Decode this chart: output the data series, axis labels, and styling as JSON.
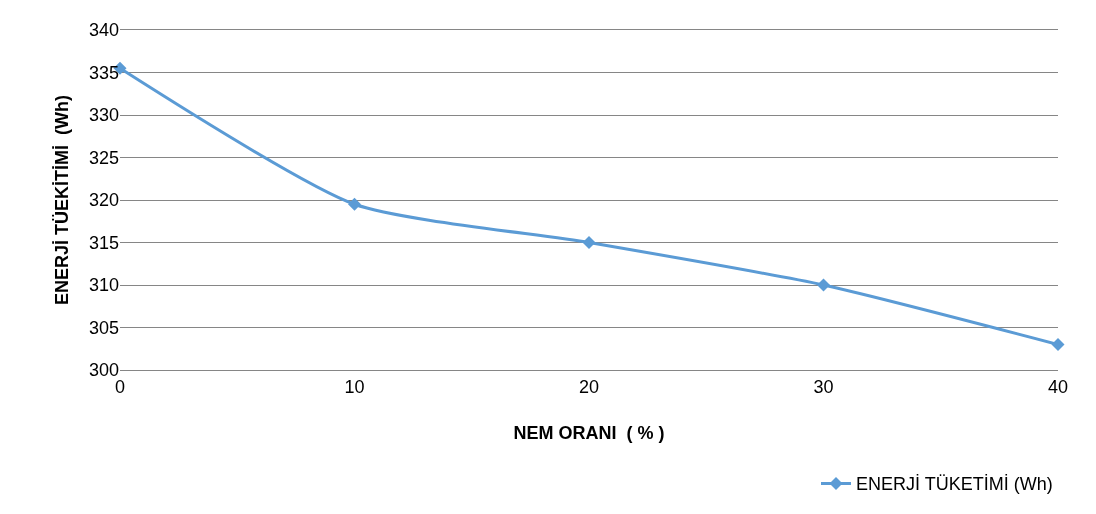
{
  "chart_data": {
    "type": "line",
    "xlabel": "NEM ORANI  ( % )",
    "ylabel": "ENERJİ TÜEKİTİMİ  (Wh)",
    "x": [
      0,
      10,
      20,
      30,
      40
    ],
    "series": [
      {
        "name": "ENERJİ TÜKETİMİ (Wh)",
        "color": "#5b9bd5",
        "values": [
          335.5,
          319.5,
          315,
          310,
          303
        ]
      }
    ],
    "xlim": [
      0,
      40
    ],
    "xticks": [
      0,
      10,
      20,
      30,
      40
    ],
    "ylim": [
      300,
      340
    ],
    "yticks": [
      300,
      305,
      310,
      315,
      320,
      325,
      330,
      335,
      340
    ],
    "grid": "y",
    "legend": "bottom right",
    "marker": "diamond",
    "line_style": "solid"
  }
}
